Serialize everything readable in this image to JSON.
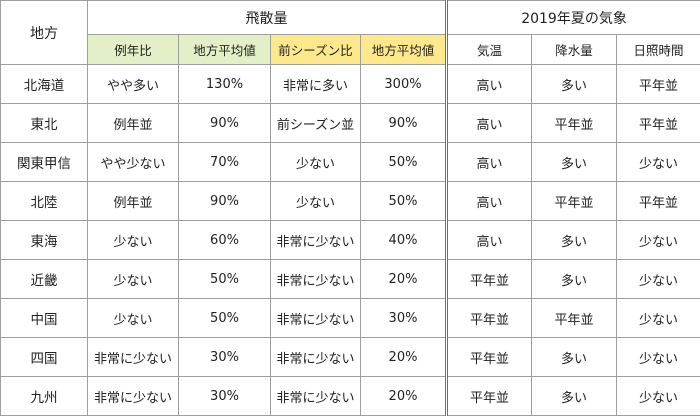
{
  "headers": {
    "region": "地方",
    "pollen_group": "飛散量",
    "weather_group": "2019年夏の気象",
    "sub": {
      "avg_year_ratio": "例年比",
      "regional_avg_1": "地方平均値",
      "prev_season_ratio": "前シーズン比",
      "regional_avg_2": "地方平均値",
      "temperature": "気温",
      "precipitation": "降水量",
      "sunshine": "日照時間"
    }
  },
  "colors": {
    "green_header": "#e3efc6",
    "yellow_header": "#fde98c",
    "border": "#9e9e9e"
  },
  "rows": [
    {
      "region": "北海道",
      "avg_year_ratio": "やや多い",
      "regional_avg_1": "130%",
      "prev_season_ratio": "非常に多い",
      "regional_avg_2": "300%",
      "temperature": "高い",
      "precipitation": "多い",
      "sunshine": "平年並"
    },
    {
      "region": "東北",
      "avg_year_ratio": "例年並",
      "regional_avg_1": "90%",
      "prev_season_ratio": "前シーズン並",
      "regional_avg_2": "90%",
      "temperature": "高い",
      "precipitation": "平年並",
      "sunshine": "平年並"
    },
    {
      "region": "関東甲信",
      "avg_year_ratio": "やや少ない",
      "regional_avg_1": "70%",
      "prev_season_ratio": "少ない",
      "regional_avg_2": "50%",
      "temperature": "高い",
      "precipitation": "多い",
      "sunshine": "少ない"
    },
    {
      "region": "北陸",
      "avg_year_ratio": "例年並",
      "regional_avg_1": "90%",
      "prev_season_ratio": "少ない",
      "regional_avg_2": "50%",
      "temperature": "高い",
      "precipitation": "平年並",
      "sunshine": "平年並"
    },
    {
      "region": "東海",
      "avg_year_ratio": "少ない",
      "regional_avg_1": "60%",
      "prev_season_ratio": "非常に少ない",
      "regional_avg_2": "40%",
      "temperature": "高い",
      "precipitation": "多い",
      "sunshine": "少ない"
    },
    {
      "region": "近畿",
      "avg_year_ratio": "少ない",
      "regional_avg_1": "50%",
      "prev_season_ratio": "非常に少ない",
      "regional_avg_2": "20%",
      "temperature": "平年並",
      "precipitation": "多い",
      "sunshine": "少ない"
    },
    {
      "region": "中国",
      "avg_year_ratio": "少ない",
      "regional_avg_1": "50%",
      "prev_season_ratio": "非常に少ない",
      "regional_avg_2": "30%",
      "temperature": "平年並",
      "precipitation": "平年並",
      "sunshine": "少ない"
    },
    {
      "region": "四国",
      "avg_year_ratio": "非常に少ない",
      "regional_avg_1": "30%",
      "prev_season_ratio": "非常に少ない",
      "regional_avg_2": "20%",
      "temperature": "平年並",
      "precipitation": "多い",
      "sunshine": "少ない"
    },
    {
      "region": "九州",
      "avg_year_ratio": "非常に少ない",
      "regional_avg_1": "30%",
      "prev_season_ratio": "非常に少ない",
      "regional_avg_2": "20%",
      "temperature": "平年並",
      "precipitation": "多い",
      "sunshine": "少ない"
    }
  ]
}
